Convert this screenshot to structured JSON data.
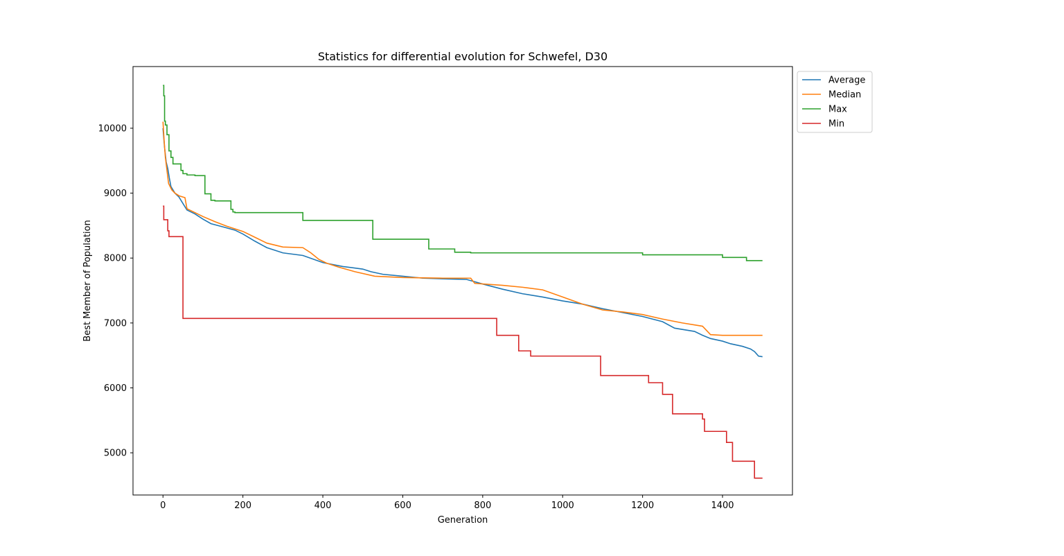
{
  "chart_data": {
    "type": "line",
    "title": "Statistics for differential evolution for Schwefel, D30",
    "xlabel": "Generation",
    "ylabel": "Best Member of Population",
    "xlim": [
      -75,
      1575
    ],
    "ylim": [
      4350,
      10950
    ],
    "xticks": [
      0,
      200,
      400,
      600,
      800,
      1000,
      1200,
      1400
    ],
    "yticks": [
      5000,
      6000,
      7000,
      8000,
      9000,
      10000
    ],
    "grid": false,
    "legend_position": "outside-top-right",
    "series": [
      {
        "name": "Average",
        "color": "#1f77b4",
        "step": false,
        "x": [
          0,
          4,
          8,
          12,
          16,
          20,
          25,
          30,
          40,
          50,
          60,
          80,
          100,
          120,
          150,
          180,
          200,
          230,
          260,
          300,
          350,
          400,
          450,
          500,
          520,
          550,
          600,
          650,
          700,
          760,
          800,
          850,
          900,
          950,
          1000,
          1050,
          1100,
          1150,
          1200,
          1250,
          1280,
          1330,
          1350,
          1370,
          1400,
          1420,
          1450,
          1470,
          1480,
          1490,
          1500
        ],
        "y": [
          10000,
          9700,
          9480,
          9380,
          9230,
          9100,
          9050,
          9000,
          8940,
          8840,
          8740,
          8680,
          8600,
          8530,
          8480,
          8430,
          8370,
          8260,
          8160,
          8080,
          8040,
          7930,
          7870,
          7830,
          7790,
          7750,
          7720,
          7690,
          7680,
          7670,
          7600,
          7520,
          7450,
          7400,
          7340,
          7290,
          7220,
          7160,
          7100,
          7020,
          6920,
          6870,
          6810,
          6760,
          6720,
          6680,
          6640,
          6600,
          6560,
          6490,
          6480
        ]
      },
      {
        "name": "Median",
        "color": "#ff7f0e",
        "step": false,
        "x": [
          0,
          3,
          6,
          10,
          14,
          18,
          22,
          30,
          40,
          55,
          60,
          80,
          100,
          130,
          160,
          200,
          230,
          260,
          300,
          350,
          370,
          390,
          410,
          440,
          480,
          530,
          600,
          700,
          770,
          780,
          850,
          900,
          950,
          1000,
          1050,
          1100,
          1150,
          1200,
          1250,
          1300,
          1350,
          1370,
          1400,
          1500
        ],
        "y": [
          10100,
          9800,
          9550,
          9350,
          9150,
          9100,
          9050,
          9000,
          8960,
          8930,
          8760,
          8700,
          8640,
          8560,
          8490,
          8410,
          8320,
          8230,
          8170,
          8160,
          8080,
          7980,
          7920,
          7860,
          7790,
          7720,
          7700,
          7690,
          7690,
          7610,
          7580,
          7550,
          7510,
          7400,
          7290,
          7200,
          7170,
          7130,
          7060,
          7000,
          6950,
          6820,
          6810,
          6810
        ]
      },
      {
        "name": "Max",
        "color": "#2ca02c",
        "step": true,
        "x": [
          0,
          2,
          4,
          6,
          10,
          15,
          20,
          25,
          35,
          45,
          50,
          60,
          80,
          105,
          120,
          130,
          170,
          175,
          180,
          350,
          525,
          665,
          730,
          770,
          1200,
          1400,
          1460,
          1500
        ],
        "y": [
          10660,
          10500,
          10110,
          10050,
          9900,
          9650,
          9550,
          9450,
          9450,
          9350,
          9300,
          9280,
          9270,
          8990,
          8890,
          8880,
          8750,
          8710,
          8700,
          8580,
          8290,
          8140,
          8090,
          8080,
          8050,
          8010,
          7960,
          7960
        ]
      },
      {
        "name": "Min",
        "color": "#d62728",
        "step": true,
        "x": [
          0,
          2,
          12,
          15,
          50,
          835,
          890,
          920,
          1095,
          1215,
          1250,
          1275,
          1350,
          1355,
          1410,
          1425,
          1480,
          1500
        ],
        "y": [
          8800,
          8590,
          8420,
          8330,
          7070,
          6810,
          6570,
          6490,
          6190,
          6080,
          5900,
          5600,
          5520,
          5330,
          5160,
          4870,
          4610,
          4610
        ]
      }
    ]
  }
}
